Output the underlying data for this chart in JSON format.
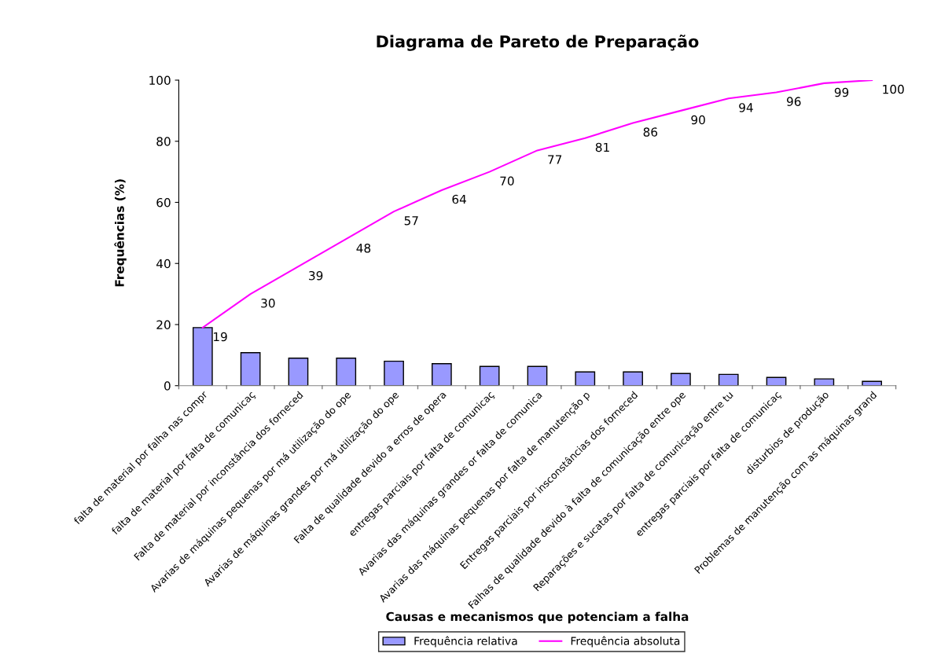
{
  "chart_data": {
    "type": "bar",
    "title": "Diagrama de Pareto de Preparação",
    "xlabel": "Causas e mecanismos que potenciam a falha",
    "ylabel": "Frequências (%)",
    "categories": [
      "falta de material por falha nas compr",
      "falta de material por falta de comunicaç",
      "Falta de material por inconstância dos forneced",
      "Avarias de máquinas pequenas por má utilização do ope",
      "Avarias de máquinas grandes por má utilização do ope",
      "Falta de qualidade devido a erros de opera",
      "entregas parciais por falta de comunicaç",
      "Avarias das máquinas grandes or falta de comunica",
      "Avarias das máquinas pequenas por falta de manutenção p",
      "Entregas parciais por insconstâncias dos forneced",
      "Falhas de qualidade devido à falta de comunicação entre ope",
      "Reparações e sucatas por falta de comunicação entre tu",
      "entregas parciais por falta de comunicaç",
      "disturbios de produção",
      "Problemas de manutenção com as máquinas grand"
    ],
    "series": [
      {
        "name": "Frequência relativa",
        "color": "#9999ff",
        "values": [
          19,
          10.8,
          9,
          9,
          8,
          7.2,
          6.3,
          6.3,
          4.5,
          4.5,
          4,
          3.7,
          2.7,
          2.2,
          1.4
        ]
      },
      {
        "name": "Frequência absoluta",
        "type": "line",
        "color": "#ff00ff",
        "data_labels": true,
        "values": [
          19,
          30,
          39,
          48,
          57,
          64,
          70,
          77,
          81,
          86,
          90,
          94,
          96,
          99,
          100
        ]
      }
    ],
    "ylim": [
      0,
      100
    ],
    "yticks": [
      0,
      20,
      40,
      60,
      80,
      100
    ],
    "grid": false,
    "legend": "bottom",
    "marker": "none",
    "line_style": "solid"
  }
}
